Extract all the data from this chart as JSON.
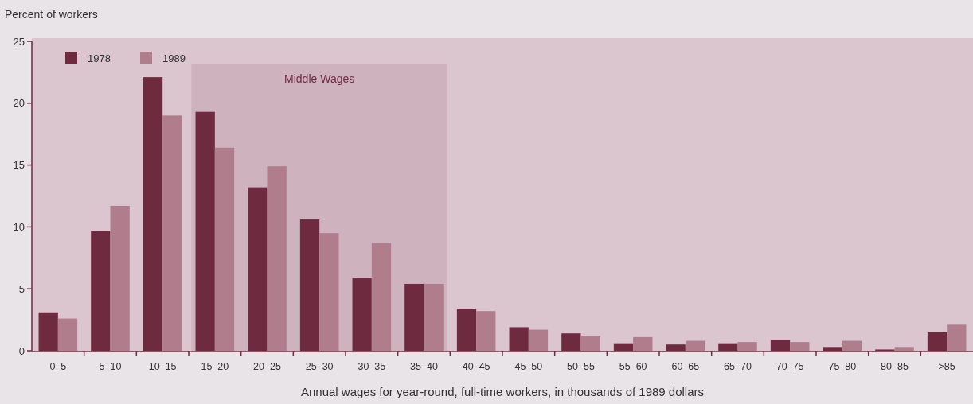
{
  "chart_data": {
    "type": "bar",
    "ylabel": "Percent of workers",
    "xlabel": "Annual wages for year-round, full-time workers, in thousands of 1989 dollars",
    "categories": [
      "0–5",
      "5–10",
      "10–15",
      "15–20",
      "20–25",
      "25–30",
      "30–35",
      "35–40",
      "40–45",
      "45–50",
      "50–55",
      "55–60",
      "60–65",
      "65–70",
      "70–75",
      "75–80",
      "80–85",
      ">85"
    ],
    "series": [
      {
        "name": "1978",
        "color": "#6e2a3e",
        "values": [
          3.1,
          9.7,
          22.1,
          19.3,
          13.2,
          10.6,
          5.9,
          5.4,
          3.4,
          1.9,
          1.4,
          0.6,
          0.5,
          0.6,
          0.9,
          0.3,
          0.1,
          1.5
        ]
      },
      {
        "name": "1989",
        "color": "#b07d8c",
        "values": [
          2.6,
          11.7,
          19.0,
          16.4,
          14.9,
          9.5,
          8.7,
          5.4,
          3.2,
          1.7,
          1.2,
          1.1,
          0.8,
          0.7,
          0.7,
          0.8,
          0.3,
          2.1
        ]
      }
    ],
    "ylim": [
      0,
      25
    ],
    "yticks": [
      0,
      5,
      10,
      15,
      20,
      25
    ],
    "grid": false,
    "legend": "top left",
    "bands": [
      {
        "axis": "x",
        "from": "15–20",
        "to": "35–40",
        "label": "Middle Wages",
        "color": "#ceb3be"
      }
    ]
  }
}
